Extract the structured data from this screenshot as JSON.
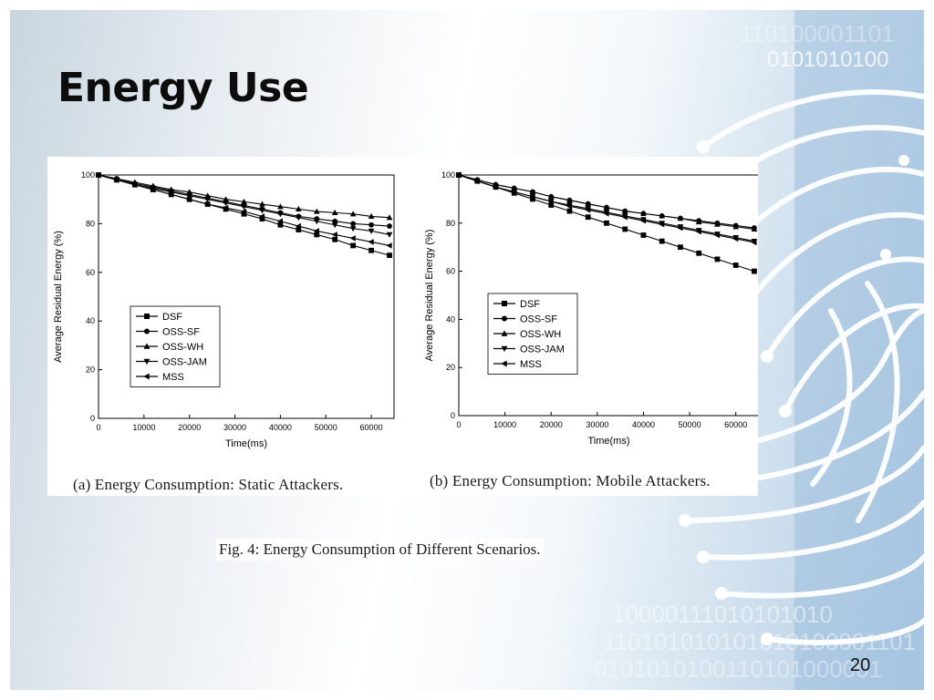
{
  "slide": {
    "title": "Energy Use",
    "figure_caption": "Fig. 4: Energy Consumption of Different Scenarios.",
    "slide_number": "20",
    "background_binary": [
      "110100001101",
      "0101010100",
      "10000111010101010",
      "110101010101010100001101",
      "0101010100110101000001"
    ]
  },
  "chart_data": [
    {
      "type": "line",
      "caption": "(a) Energy Consumption: Static Attackers.",
      "xlabel": "Time(ms)",
      "ylabel": "Average Residual Energy (%)",
      "xlim": [
        0,
        65000
      ],
      "ylim": [
        0,
        100
      ],
      "xticks": [
        0,
        10000,
        20000,
        30000,
        40000,
        50000,
        60000
      ],
      "yticks": [
        0,
        20,
        40,
        60,
        80,
        100
      ],
      "legend_position": "lower-left",
      "x": [
        0,
        4000,
        8000,
        12000,
        16000,
        20000,
        24000,
        28000,
        32000,
        36000,
        40000,
        44000,
        48000,
        52000,
        56000,
        60000,
        64000
      ],
      "series": [
        {
          "name": "DSF",
          "marker": "square",
          "values": [
            100,
            98,
            96,
            94,
            92,
            90,
            88,
            86,
            84,
            82,
            79.5,
            77.5,
            75.5,
            73.5,
            71,
            69,
            67
          ]
        },
        {
          "name": "OSS-SF",
          "marker": "circle",
          "values": [
            100,
            98.5,
            96.5,
            95,
            93.5,
            92,
            90.5,
            89,
            87.5,
            86,
            84.5,
            83,
            82,
            81,
            80,
            79.5,
            79
          ]
        },
        {
          "name": "OSS-WH",
          "marker": "triangle-up",
          "values": [
            100,
            98.5,
            97,
            95.5,
            94,
            93,
            91.5,
            90,
            89,
            88,
            87,
            86,
            85,
            84.5,
            84,
            83,
            82.5
          ]
        },
        {
          "name": "OSS-JAM",
          "marker": "triangle-down",
          "values": [
            100,
            98,
            96,
            94.5,
            93,
            91.5,
            90,
            88.5,
            87,
            85.5,
            84,
            82.5,
            81,
            79.5,
            78,
            77,
            75.5
          ]
        },
        {
          "name": "MSS",
          "marker": "triangle-left",
          "values": [
            100,
            98,
            96,
            94,
            92,
            90,
            88,
            86.5,
            85,
            83,
            81,
            79,
            77,
            75.5,
            74,
            72.5,
            71
          ]
        }
      ]
    },
    {
      "type": "line",
      "caption": "(b) Energy Consumption: Mobile Attackers.",
      "xlabel": "Time(ms)",
      "ylabel": "Average Residual Energy (%)",
      "xlim": [
        0,
        65000
      ],
      "ylim": [
        0,
        100
      ],
      "xticks": [
        0,
        10000,
        20000,
        30000,
        40000,
        50000,
        60000
      ],
      "yticks": [
        0,
        20,
        40,
        60,
        80,
        100
      ],
      "legend_position": "lower-left",
      "x": [
        0,
        4000,
        8000,
        12000,
        16000,
        20000,
        24000,
        28000,
        32000,
        36000,
        40000,
        44000,
        48000,
        52000,
        56000,
        60000,
        64000
      ],
      "series": [
        {
          "name": "DSF",
          "marker": "square",
          "values": [
            100,
            97.5,
            95,
            92.5,
            90,
            87.5,
            85,
            82.5,
            80,
            77.5,
            75,
            72.5,
            70,
            67.5,
            65,
            62.5,
            60
          ]
        },
        {
          "name": "OSS-SF",
          "marker": "circle",
          "values": [
            100,
            98,
            96,
            94.5,
            93,
            91,
            89.5,
            88,
            86.5,
            85,
            84,
            83,
            82,
            81,
            80,
            79,
            78
          ]
        },
        {
          "name": "OSS-WH",
          "marker": "triangle-up",
          "values": [
            100,
            98,
            96,
            94.5,
            93,
            91,
            89.5,
            88,
            86.5,
            85,
            84,
            83,
            82,
            80.5,
            79.5,
            78.5,
            77.5
          ]
        },
        {
          "name": "OSS-JAM",
          "marker": "triangle-down",
          "values": [
            100,
            97.5,
            95,
            93,
            91,
            89,
            87.5,
            86,
            84.5,
            83,
            81.5,
            80,
            78.5,
            77,
            75.5,
            74,
            72.5
          ]
        },
        {
          "name": "MSS",
          "marker": "triangle-left",
          "values": [
            100,
            97.5,
            95,
            93,
            91,
            89,
            87,
            85.5,
            84,
            82.5,
            81,
            79.5,
            78,
            76.5,
            75,
            73.5,
            72
          ]
        }
      ]
    }
  ]
}
